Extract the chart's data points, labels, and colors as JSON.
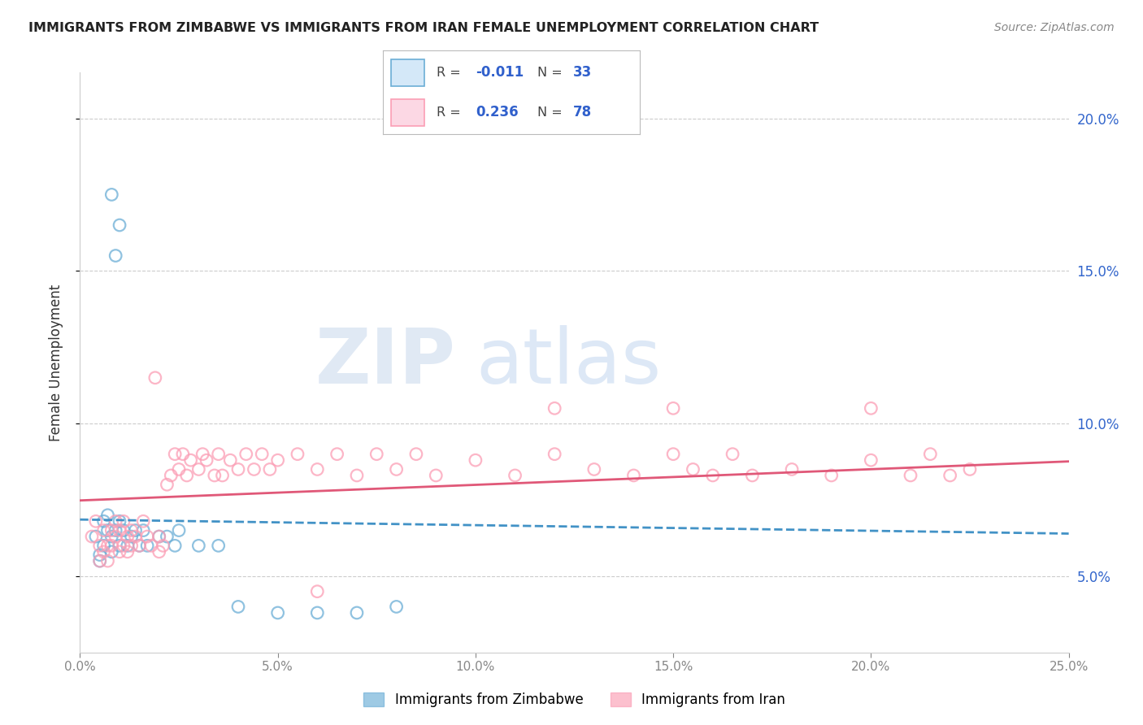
{
  "title": "IMMIGRANTS FROM ZIMBABWE VS IMMIGRANTS FROM IRAN FEMALE UNEMPLOYMENT CORRELATION CHART",
  "source": "Source: ZipAtlas.com",
  "ylabel": "Female Unemployment",
  "color_zimbabwe": "#6baed6",
  "color_iran": "#fb9eb5",
  "color_trend_zimbabwe": "#4292c6",
  "color_trend_iran": "#e05878",
  "background_color": "#ffffff",
  "xlim": [
    0.0,
    0.25
  ],
  "ylim": [
    0.025,
    0.215
  ],
  "yticks": [
    0.05,
    0.1,
    0.15,
    0.2
  ],
  "ytick_labels": [
    "5.0%",
    "10.0%",
    "15.0%",
    "20.0%"
  ],
  "xticks": [
    0.0,
    0.05,
    0.1,
    0.15,
    0.2,
    0.25
  ],
  "xtick_labels": [
    "0.0%",
    "5.0%",
    "10.0%",
    "15.0%",
    "20.0%",
    "25.0%"
  ],
  "legend1_r": "-0.011",
  "legend1_n": "33",
  "legend2_r": "0.236",
  "legend2_n": "78",
  "zim_x": [
    0.008,
    0.01,
    0.009,
    0.004,
    0.005,
    0.006,
    0.005,
    0.006,
    0.007,
    0.007,
    0.008,
    0.008,
    0.009,
    0.01,
    0.01,
    0.011,
    0.012,
    0.013,
    0.014,
    0.015,
    0.016,
    0.017,
    0.02,
    0.022,
    0.024,
    0.025,
    0.03,
    0.035,
    0.04,
    0.05,
    0.06,
    0.07,
    0.08
  ],
  "zim_y": [
    0.175,
    0.165,
    0.155,
    0.063,
    0.057,
    0.068,
    0.055,
    0.06,
    0.065,
    0.07,
    0.063,
    0.058,
    0.065,
    0.06,
    0.068,
    0.065,
    0.06,
    0.063,
    0.065,
    0.06,
    0.065,
    0.06,
    0.063,
    0.063,
    0.06,
    0.065,
    0.06,
    0.06,
    0.04,
    0.038,
    0.038,
    0.038,
    0.04
  ],
  "iran_x": [
    0.003,
    0.004,
    0.005,
    0.005,
    0.006,
    0.006,
    0.007,
    0.007,
    0.008,
    0.008,
    0.009,
    0.009,
    0.01,
    0.01,
    0.011,
    0.011,
    0.012,
    0.012,
    0.013,
    0.013,
    0.014,
    0.015,
    0.016,
    0.017,
    0.018,
    0.019,
    0.02,
    0.02,
    0.021,
    0.022,
    0.023,
    0.024,
    0.025,
    0.026,
    0.027,
    0.028,
    0.03,
    0.031,
    0.032,
    0.034,
    0.035,
    0.036,
    0.038,
    0.04,
    0.042,
    0.044,
    0.046,
    0.048,
    0.05,
    0.055,
    0.06,
    0.065,
    0.07,
    0.075,
    0.08,
    0.085,
    0.09,
    0.1,
    0.11,
    0.12,
    0.13,
    0.14,
    0.15,
    0.155,
    0.16,
    0.165,
    0.17,
    0.18,
    0.19,
    0.2,
    0.21,
    0.215,
    0.22,
    0.225,
    0.15,
    0.2,
    0.12,
    0.06
  ],
  "iran_y": [
    0.063,
    0.068,
    0.055,
    0.06,
    0.058,
    0.065,
    0.055,
    0.06,
    0.065,
    0.06,
    0.063,
    0.068,
    0.058,
    0.065,
    0.06,
    0.068,
    0.063,
    0.058,
    0.06,
    0.065,
    0.063,
    0.06,
    0.068,
    0.063,
    0.06,
    0.115,
    0.063,
    0.058,
    0.06,
    0.08,
    0.083,
    0.09,
    0.085,
    0.09,
    0.083,
    0.088,
    0.085,
    0.09,
    0.088,
    0.083,
    0.09,
    0.083,
    0.088,
    0.085,
    0.09,
    0.085,
    0.09,
    0.085,
    0.088,
    0.09,
    0.085,
    0.09,
    0.083,
    0.09,
    0.085,
    0.09,
    0.083,
    0.088,
    0.083,
    0.09,
    0.085,
    0.083,
    0.09,
    0.085,
    0.083,
    0.09,
    0.083,
    0.085,
    0.083,
    0.088,
    0.083,
    0.09,
    0.083,
    0.085,
    0.105,
    0.105,
    0.105,
    0.045
  ]
}
